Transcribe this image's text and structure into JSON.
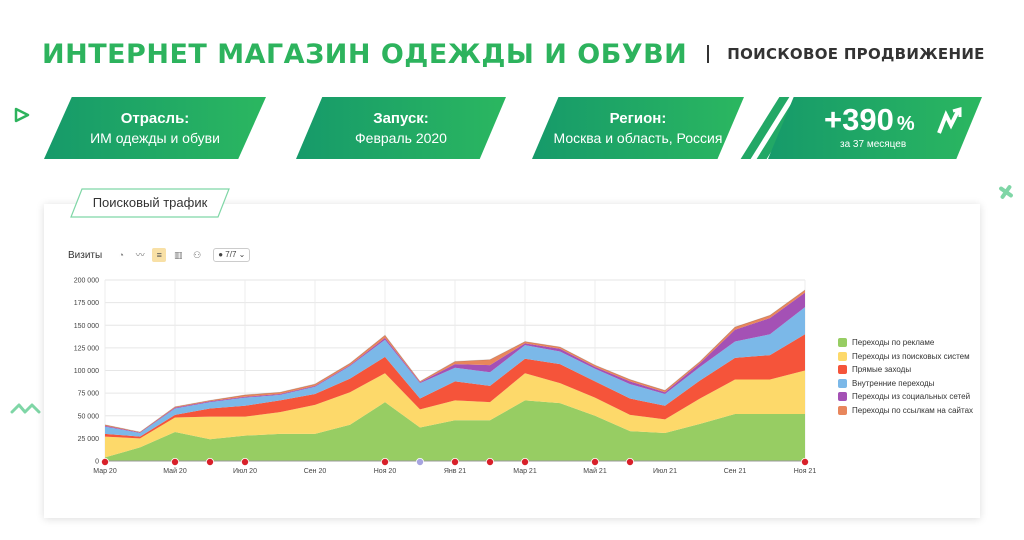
{
  "header": {
    "title": "ИНТЕРНЕТ МАГАЗИН ОДЕЖДЫ И ОБУВИ",
    "subtitle": "ПОИСКОВОЕ ПРОДВИЖЕНИЕ"
  },
  "cards": [
    {
      "label": "Отрасль:",
      "value": "ИМ одежды и обуви"
    },
    {
      "label": "Запуск:",
      "value": "Февраль 2020"
    },
    {
      "label": "Регион:",
      "value": "Москва и область, Россия"
    }
  ],
  "growth": {
    "value": "+390",
    "unit": "%",
    "caption": "за 37 месяцев"
  },
  "tab": {
    "label": "Поисковый трафик"
  },
  "toolbar": {
    "label": "Визиты",
    "select_value": "7/7"
  },
  "colors": {
    "brand_green": "#2db35d",
    "ads": "#97cd63",
    "search": "#fdd96a",
    "direct": "#f5543a",
    "internal": "#7bb8e8",
    "social": "#a451b5",
    "links": "#e8865c"
  },
  "chart_data": {
    "type": "area",
    "stacked": true,
    "ylabel": "Визиты",
    "ylim": [
      0,
      200000
    ],
    "yticks": [
      0,
      25000,
      50000,
      75000,
      100000,
      125000,
      150000,
      175000,
      200000
    ],
    "ytick_labels": [
      "0",
      "25 000",
      "50 000",
      "75 000",
      "100 000",
      "125 000",
      "150 000",
      "175 000",
      "200 000"
    ],
    "x_count": 21,
    "x_tick_labels": [
      {
        "i": 0,
        "label": "Мар 20"
      },
      {
        "i": 2,
        "label": "Май 20"
      },
      {
        "i": 4,
        "label": "Июл 20"
      },
      {
        "i": 6,
        "label": "Сен 20"
      },
      {
        "i": 8,
        "label": "Ноя 20"
      },
      {
        "i": 10,
        "label": "Янв 21"
      },
      {
        "i": 12,
        "label": "Мар 21"
      },
      {
        "i": 14,
        "label": "Май 21"
      },
      {
        "i": 16,
        "label": "Июл 21"
      },
      {
        "i": 18,
        "label": "Сен 21"
      },
      {
        "i": 20,
        "label": "Ноя 21"
      }
    ],
    "series": [
      {
        "name": "Переходы по рекламе",
        "color": "#97cd63",
        "values": [
          4000,
          15000,
          32000,
          24000,
          28000,
          30000,
          30000,
          40000,
          65000,
          37000,
          45000,
          45000,
          67000,
          64000,
          50000,
          33000,
          31000,
          41000,
          52000,
          52000,
          52000
        ]
      },
      {
        "name": "Переходы из поисковых систем",
        "color": "#fdd96a",
        "values": [
          23000,
          10000,
          16000,
          25000,
          21000,
          24000,
          32000,
          36000,
          32000,
          20000,
          22000,
          20000,
          30000,
          22000,
          20000,
          18000,
          15000,
          28000,
          38000,
          38000,
          48000
        ]
      },
      {
        "name": "Прямые заходы",
        "color": "#f5543a",
        "values": [
          3000,
          2000,
          3000,
          9000,
          12000,
          13000,
          12000,
          15000,
          18000,
          12000,
          21000,
          18000,
          16000,
          21000,
          18000,
          18000,
          15000,
          20000,
          24000,
          27000,
          40000
        ]
      },
      {
        "name": "Внутренние переходы",
        "color": "#7bb8e8",
        "values": [
          8000,
          4000,
          7000,
          7000,
          9000,
          6000,
          8000,
          14000,
          19000,
          17000,
          15000,
          15000,
          15000,
          14000,
          14000,
          16000,
          13000,
          15000,
          18000,
          23000,
          30000
        ]
      },
      {
        "name": "Переходы из социальных сетей",
        "color": "#a451b5",
        "values": [
          1000,
          500,
          1000,
          1000,
          1000,
          1000,
          1000,
          1000,
          2000,
          1000,
          4000,
          8000,
          2000,
          3000,
          2000,
          3000,
          2000,
          4000,
          13000,
          18000,
          16000
        ]
      },
      {
        "name": "Переходы по ссылкам на сайтах",
        "color": "#e8865c",
        "values": [
          1000,
          500,
          1000,
          1000,
          2000,
          2000,
          2000,
          2000,
          3000,
          1000,
          3000,
          6000,
          2000,
          2000,
          2000,
          2000,
          2000,
          2000,
          3000,
          3000,
          3000
        ]
      }
    ]
  }
}
